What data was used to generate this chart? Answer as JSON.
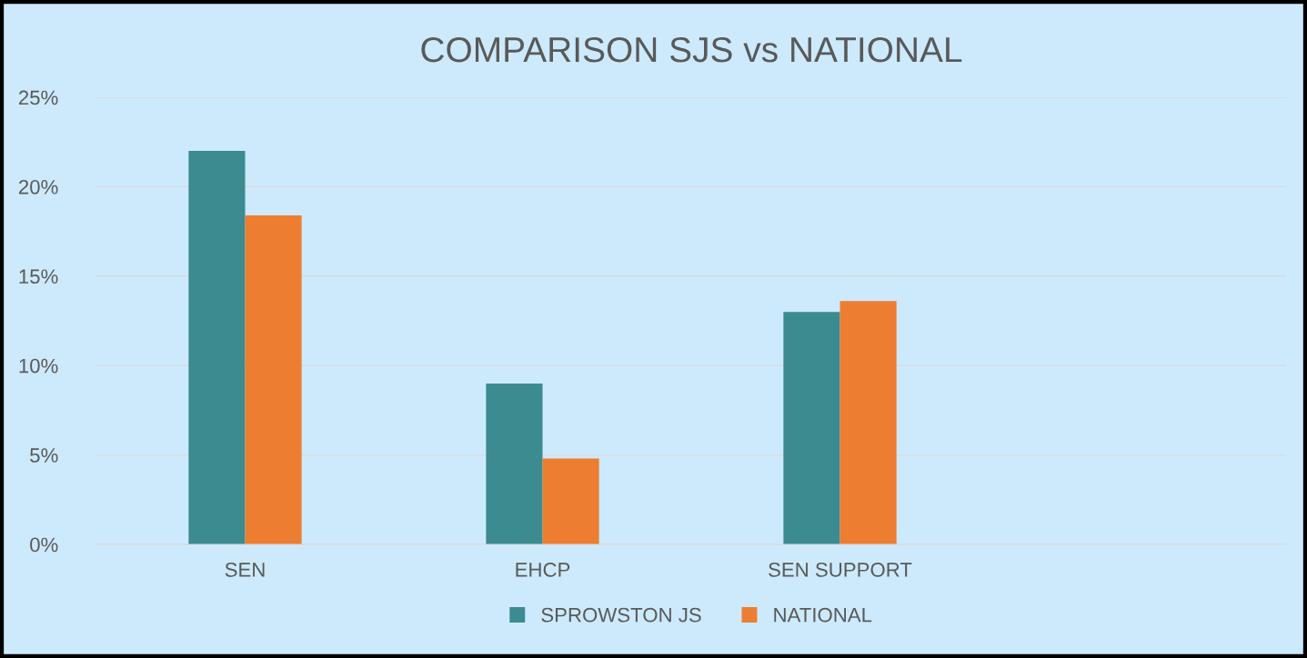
{
  "chart_data": {
    "type": "bar",
    "title": "COMPARISON SJS vs NATIONAL",
    "categories": [
      "SEN",
      "EHCP",
      "SEN SUPPORT",
      null
    ],
    "series": [
      {
        "name": "SPROWSTON JS",
        "color": "#3b8b90",
        "values": [
          22,
          9,
          13,
          null
        ]
      },
      {
        "name": "NATIONAL",
        "color": "#ed7d31",
        "values": [
          18.4,
          4.8,
          13.6,
          null
        ]
      }
    ],
    "ylim": [
      0,
      25
    ],
    "yticks": [
      {
        "value": 0,
        "label": "0%"
      },
      {
        "value": 5,
        "label": "5%"
      },
      {
        "value": 10,
        "label": "10%"
      },
      {
        "value": 15,
        "label": "15%"
      },
      {
        "value": 20,
        "label": "20%"
      },
      {
        "value": 25,
        "label": "25%"
      }
    ],
    "grid": "y",
    "legend": "bottom"
  }
}
